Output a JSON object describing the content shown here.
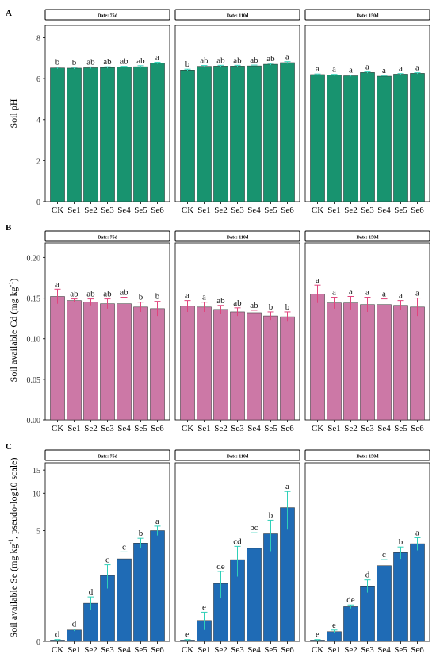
{
  "figure": {
    "panels": [
      {
        "letter": "A",
        "ylabel": "Soil pH",
        "ylabel_sup": "",
        "ylabel_suffix": "",
        "ylabel_tail": "",
        "bar_color": "#18936f",
        "error_color": "#39d5bd"
      },
      {
        "letter": "B",
        "ylabel": "Soil available Cd (mg kg",
        "ylabel_sup": "-1",
        "ylabel_suffix": ")",
        "ylabel_tail": "",
        "bar_color": "#cc78a6",
        "error_color": "#e0447c"
      },
      {
        "letter": "C",
        "ylabel": "Soil available Se (mg kg",
        "ylabel_sup": "-1",
        "ylabel_suffix": ", pseudo-log10 scale)",
        "ylabel_tail": "",
        "bar_color": "#1f6bb5",
        "error_color": "#2fd0b8"
      }
    ]
  },
  "chart_data": [
    {
      "type": "bar",
      "panel": "A",
      "ylabel": "Soil pH",
      "ylim": [
        0,
        8.6
      ],
      "yticks": [
        0,
        2,
        4,
        6,
        8
      ],
      "ytick_labels": [
        "0",
        "2",
        "4",
        "6",
        "8"
      ],
      "scale": "linear",
      "categories": [
        "CK",
        "Se1",
        "Se2",
        "Se3",
        "Se4",
        "Se5",
        "Se6"
      ],
      "facets": [
        {
          "label": "Date: 75d",
          "values": [
            6.52,
            6.51,
            6.53,
            6.54,
            6.56,
            6.58,
            6.76
          ],
          "errors": [
            0.04,
            0.04,
            0.04,
            0.04,
            0.04,
            0.05,
            0.04
          ],
          "letters": [
            "b",
            "b",
            "ab",
            "ab",
            "ab",
            "ab",
            "a"
          ]
        },
        {
          "label": "Date: 110d",
          "values": [
            6.42,
            6.6,
            6.61,
            6.61,
            6.62,
            6.7,
            6.78
          ],
          "errors": [
            0.04,
            0.04,
            0.04,
            0.04,
            0.04,
            0.04,
            0.05
          ],
          "letters": [
            "b",
            "ab",
            "ab",
            "ab",
            "ab",
            "ab",
            "a"
          ]
        },
        {
          "label": "Date: 150d",
          "values": [
            6.2,
            6.18,
            6.14,
            6.3,
            6.12,
            6.22,
            6.26
          ],
          "errors": [
            0.03,
            0.03,
            0.03,
            0.03,
            0.03,
            0.03,
            0.03
          ],
          "letters": [
            "a",
            "a",
            "a",
            "a",
            "a",
            "a",
            "a"
          ]
        }
      ]
    },
    {
      "type": "bar",
      "panel": "B",
      "ylabel": "Soil available Cd (mg kg-1)",
      "ylim": [
        0,
        0.218
      ],
      "yticks": [
        0,
        0.05,
        0.1,
        0.15,
        0.2
      ],
      "ytick_labels": [
        "0.00",
        "0.05",
        "0.10",
        "0.15",
        "0.20"
      ],
      "scale": "linear",
      "categories": [
        "CK",
        "Se1",
        "Se2",
        "Se3",
        "Se4",
        "Se5",
        "Se6"
      ],
      "facets": [
        {
          "label": "Date: 75d",
          "values": [
            0.152,
            0.147,
            0.145,
            0.143,
            0.143,
            0.139,
            0.137
          ],
          "errors": [
            0.009,
            0.002,
            0.004,
            0.006,
            0.008,
            0.006,
            0.009
          ],
          "letters": [
            "a",
            "ab",
            "ab",
            "ab",
            "ab",
            "b",
            "b"
          ]
        },
        {
          "label": "Date: 110d",
          "values": [
            0.14,
            0.139,
            0.136,
            0.133,
            0.132,
            0.128,
            0.127
          ],
          "errors": [
            0.007,
            0.006,
            0.005,
            0.005,
            0.003,
            0.005,
            0.006
          ],
          "letters": [
            "a",
            "a",
            "ab",
            "ab",
            "ab",
            "b",
            "b"
          ]
        },
        {
          "label": "Date: 150d",
          "values": [
            0.155,
            0.144,
            0.144,
            0.142,
            0.142,
            0.141,
            0.139
          ],
          "errors": [
            0.011,
            0.007,
            0.008,
            0.009,
            0.007,
            0.006,
            0.011
          ],
          "letters": [
            "a",
            "a",
            "a",
            "a",
            "a",
            "a",
            "a"
          ]
        }
      ]
    },
    {
      "type": "bar",
      "panel": "C",
      "ylabel": "Soil available Se (mg kg-1, pseudo-log10 scale)",
      "ylim": [
        0,
        17
      ],
      "yticks": [
        0,
        5,
        10,
        15
      ],
      "ytick_labels": [
        "0",
        "5",
        "10",
        "15"
      ],
      "scale": "pseudo-log10",
      "categories": [
        "CK",
        "Se1",
        "Se2",
        "Se3",
        "Se4",
        "Se5",
        "Se6"
      ],
      "facets": [
        {
          "label": "Date: 75d",
          "values": [
            0.02,
            0.2,
            0.85,
            1.9,
            2.8,
            3.9,
            5.0
          ],
          "errors": [
            0.01,
            0.02,
            0.2,
            0.55,
            0.45,
            0.4,
            0.45
          ],
          "letters": [
            "d",
            "d",
            "d",
            "c",
            "c",
            "b",
            "a"
          ]
        },
        {
          "label": "Date: 110d",
          "values": [
            0.02,
            0.4,
            1.55,
            2.75,
            3.5,
            4.7,
            7.7
          ],
          "errors": [
            0.01,
            0.2,
            0.55,
            0.9,
            1.3,
            1.4,
            2.6
          ],
          "letters": [
            "e",
            "e",
            "de",
            "cd",
            "bc",
            "b",
            "a"
          ]
        },
        {
          "label": "Date: 150d",
          "values": [
            0.02,
            0.17,
            0.75,
            1.45,
            2.4,
            3.2,
            3.85
          ],
          "errors": [
            0.01,
            0.03,
            0.05,
            0.25,
            0.35,
            0.4,
            0.5
          ],
          "letters": [
            "e",
            "e",
            "de",
            "d",
            "c",
            "b",
            "a"
          ]
        }
      ]
    }
  ]
}
